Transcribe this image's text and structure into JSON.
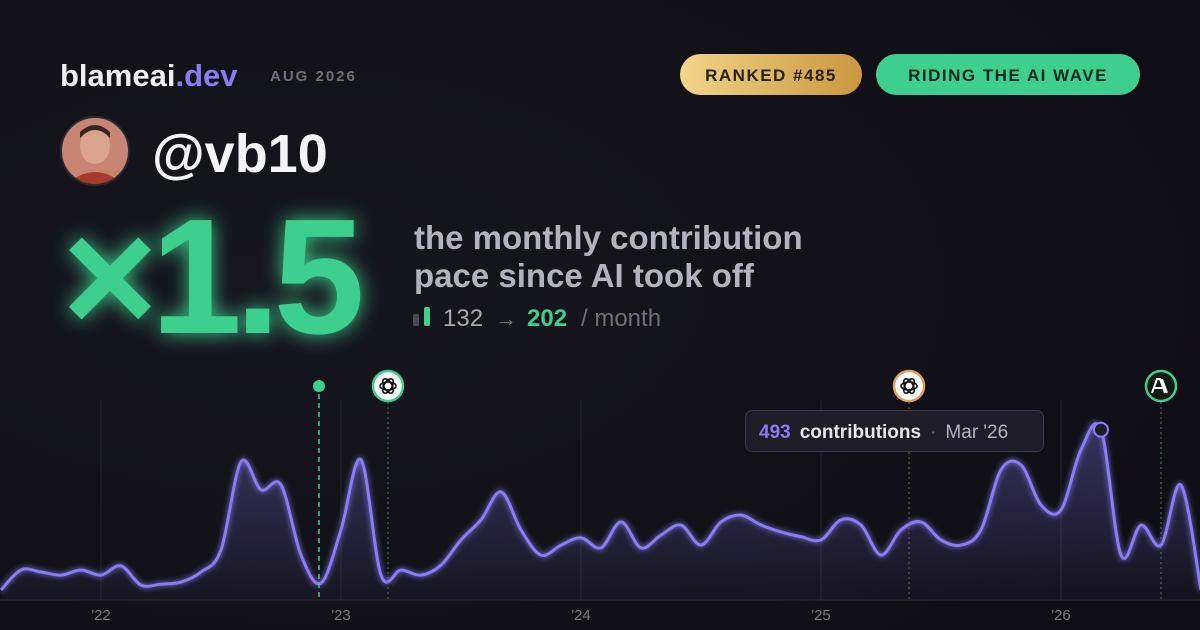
{
  "header": {
    "brand": "blameai",
    "brand_tld": ".dev",
    "period": "AUG 2026",
    "rank_badge": "RANKED #485",
    "status_badge": "RIDING THE AI WAVE",
    "handle": "@vb10"
  },
  "headline": {
    "multiplier": "×1.5",
    "line1": "the monthly contribution",
    "line2": "pace since AI took off",
    "before": 132,
    "arrow": "→",
    "after": 202,
    "unit": "/ month"
  },
  "chart_data": {
    "type": "area",
    "categories": [
      null,
      null,
      null,
      null,
      null,
      "'22",
      null,
      null,
      null,
      null,
      null,
      null,
      null,
      null,
      null,
      null,
      null,
      "'23",
      null,
      null,
      null,
      null,
      null,
      null,
      null,
      null,
      null,
      null,
      null,
      "'24",
      null,
      null,
      null,
      null,
      null,
      null,
      null,
      null,
      null,
      null,
      null,
      "'25",
      null,
      null,
      null,
      null,
      null,
      null,
      null,
      null,
      null,
      null,
      null,
      "'26",
      null,
      null,
      null,
      null,
      null,
      null,
      null
    ],
    "values": [
      29,
      87,
      81,
      72,
      87,
      72,
      99,
      43,
      46,
      52,
      81,
      145,
      400,
      319,
      333,
      130,
      49,
      203,
      406,
      72,
      87,
      72,
      101,
      174,
      232,
      313,
      203,
      130,
      159,
      180,
      151,
      226,
      151,
      188,
      217,
      159,
      226,
      246,
      217,
      197,
      183,
      174,
      232,
      217,
      130,
      203,
      226,
      174,
      159,
      203,
      377,
      391,
      275,
      261,
      435,
      493,
      130,
      217,
      159,
      333,
      29
    ],
    "color": "#8b7cf6",
    "ylim": [
      0,
      550
    ],
    "tooltip": {
      "label": "contributions",
      "separator": "·",
      "category": "Mar '26"
    }
  }
}
